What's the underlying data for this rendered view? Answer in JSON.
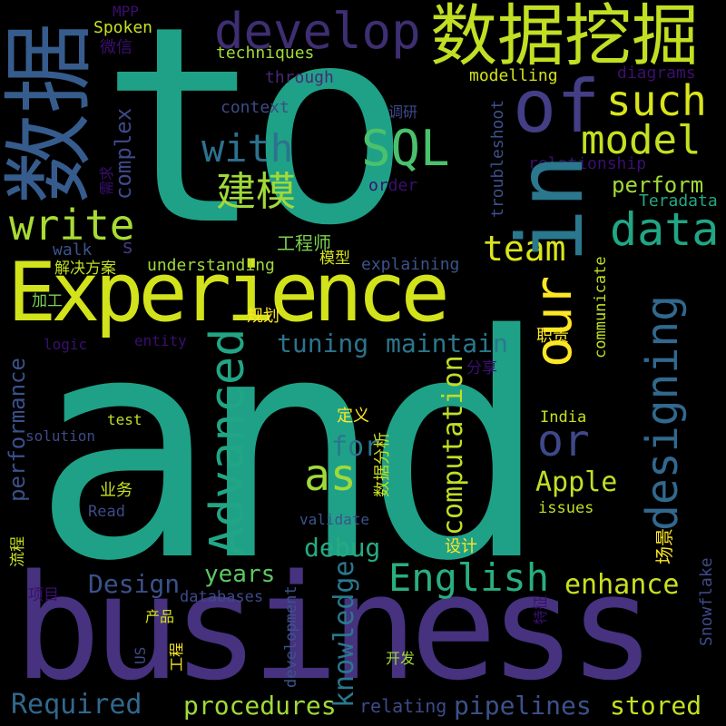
{
  "palette": {
    "background": "#000000",
    "dark_purple": "#440154",
    "purple": "#46327e",
    "blue": "#365c8d",
    "teal_blue": "#277f8e",
    "teal": "#1fa187",
    "green": "#4ac16d",
    "lime": "#a0da39",
    "yellow": "#fde725"
  },
  "words": {
    "to": "to",
    "and": "and",
    "business": "business",
    "experience": "Experience",
    "shuju": "数据",
    "shujuwajue": "数据挖掘",
    "develop": "develop",
    "of": "of",
    "in": "in",
    "such": "such",
    "model": "model",
    "with": "with",
    "sql": "SQL",
    "jianmo": "建模",
    "write": "write",
    "data": "data",
    "team": "team",
    "our": "our",
    "designing": "designing",
    "advanced": "Advanced",
    "or": "or",
    "as": "as",
    "english": "English",
    "computation": "computation",
    "knowledge": "knowledge",
    "procedures": "procedures",
    "pipelines": "pipelines",
    "stored": "stored",
    "required": "Required",
    "design": "Design",
    "years": "years",
    "enhance": "enhance",
    "tuning": "tuning",
    "maintain": "maintain",
    "perform": "perform",
    "apple": "Apple",
    "for": "for",
    "debug": "debug",
    "performance": "performance",
    "complex": "complex",
    "troubleshoot": "troubleshoot",
    "snowflake": "Snowflake",
    "development": "development",
    "communicate": "communicate",
    "understanding": "understanding",
    "explaining": "explaining",
    "gongchengshi": "工程师",
    "techniques": "techniques",
    "through": "through",
    "modelling": "modelling",
    "diagrams": "diagrams",
    "context": "context",
    "relationship": "relationship",
    "order": "order",
    "teradata": "Teradata",
    "spoken": "Spoken",
    "weixin": "微信",
    "mpp": "MPP",
    "diaoyan": "调研",
    "xuqiu": "需求",
    "s": "s",
    "walk": "walk",
    "jiejuefangan": "解决方案",
    "moxing": "模型",
    "jiagong": "加工",
    "guihua": "规划",
    "logic": "logic",
    "entity": "entity",
    "zhize": "职责",
    "fenxiang": "分享",
    "test": "test",
    "solution": "solution",
    "dingyi": "定义",
    "shujufenxi": "数据分析",
    "india": "India",
    "yewu": "业务",
    "read": "Read",
    "validate": "validate",
    "issues": "issues",
    "sheji": "设计",
    "changjing": "场景",
    "liucheng": "流程",
    "xiangmu": "项目",
    "databases": "databases",
    "chanpin": "产品",
    "tezheng": "特征",
    "us": "US",
    "gongcheng": "工程",
    "kaifa": "开发",
    "relating": "relating"
  }
}
